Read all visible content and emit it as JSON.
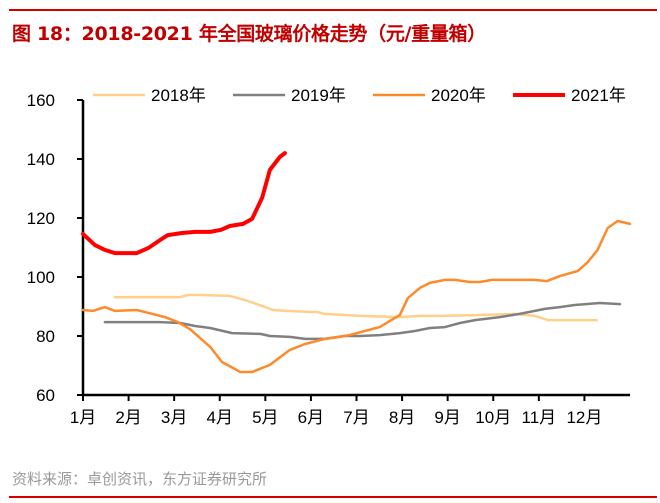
{
  "title": "图 18：2018-2021 年全国玻璃价格走势（元/重量箱）",
  "source": "资料来源：卓创资讯，东方证券研究所",
  "colors": {
    "accent": "#d40000",
    "2018": "#ffd08a",
    "2019": "#808080",
    "2020": "#ff8a2a",
    "2021": "#ff0000"
  },
  "chart_data": {
    "type": "line",
    "title": "图 18：2018-2021 年全国玻璃价格走势（元/重量箱）",
    "xlabel": "",
    "ylabel": "",
    "x_tick_labels": [
      "1月",
      "2月",
      "3月",
      "4月",
      "5月",
      "6月",
      "7月",
      "8月",
      "9月",
      "10月",
      "11月",
      "12月"
    ],
    "x_unit": "month (1 = 1月)",
    "xlim": [
      1,
      13
    ],
    "ylim": [
      60,
      160
    ],
    "y_ticks": [
      60,
      80,
      100,
      120,
      140,
      160
    ],
    "grid": false,
    "legend": "top",
    "series": [
      {
        "name": "2018年",
        "color": "#ffd08a",
        "x": [
          1.7,
          3.13,
          3.31,
          3.57,
          4.22,
          4.55,
          4.93,
          5.17,
          5.43,
          6.15,
          6.3,
          7.07,
          7.95,
          8.39,
          8.83,
          9.6,
          10.47,
          10.91,
          11.2,
          11.46,
          12.27
        ],
        "y": [
          93.2,
          93.2,
          93.9,
          93.9,
          93.6,
          92.2,
          90.2,
          88.8,
          88.5,
          88.1,
          87.5,
          86.8,
          86.4,
          86.8,
          86.8,
          87.1,
          87.5,
          86.8,
          85.4,
          85.4,
          85.4
        ]
      },
      {
        "name": "2019年",
        "color": "#808080",
        "x": [
          1.48,
          2.69,
          3.13,
          3.46,
          3.79,
          4.27,
          4.89,
          5.1,
          5.54,
          5.87,
          6.3,
          6.74,
          7.07,
          7.51,
          7.95,
          8.28,
          8.61,
          8.94,
          9.27,
          9.6,
          10.14,
          10.58,
          11.13,
          11.46,
          11.79,
          12.34,
          12.78
        ],
        "y": [
          84.7,
          84.7,
          84.4,
          83.4,
          82.7,
          81.0,
          80.7,
          80.0,
          79.7,
          79.0,
          79.0,
          80.0,
          80.0,
          80.3,
          81.0,
          81.7,
          82.7,
          83.0,
          84.4,
          85.4,
          86.4,
          87.5,
          89.2,
          89.8,
          90.5,
          91.2,
          90.8
        ]
      },
      {
        "name": "2020年",
        "color": "#ff8a2a",
        "x": [
          1.0,
          1.22,
          1.48,
          1.7,
          2.18,
          2.36,
          2.8,
          3.08,
          3.35,
          3.79,
          4.05,
          4.45,
          4.71,
          5.1,
          5.54,
          5.87,
          6.3,
          6.63,
          6.85,
          7.18,
          7.51,
          7.69,
          7.95,
          8.13,
          8.39,
          8.61,
          8.94,
          9.16,
          9.49,
          9.71,
          9.97,
          10.36,
          10.91,
          11.18,
          11.46,
          11.85,
          12.07,
          12.29,
          12.51,
          12.73,
          13.0
        ],
        "y": [
          88.8,
          88.5,
          89.8,
          88.5,
          88.8,
          88.1,
          86.4,
          84.7,
          82.3,
          76.3,
          71.2,
          67.8,
          67.8,
          70.2,
          75.3,
          77.3,
          79.0,
          79.7,
          80.3,
          81.7,
          83.0,
          84.7,
          87.1,
          92.9,
          96.3,
          98.0,
          99.0,
          99.0,
          98.3,
          98.3,
          99.0,
          99.0,
          99.0,
          98.6,
          100.3,
          102.0,
          105.0,
          109.2,
          116.6,
          119.0,
          118.0
        ]
      },
      {
        "name": "2021年",
        "color": "#ff0000",
        "x": [
          1.0,
          1.26,
          1.48,
          1.7,
          2.18,
          2.43,
          2.69,
          2.86,
          3.17,
          3.46,
          3.79,
          4.03,
          4.22,
          4.51,
          4.71,
          4.93,
          5.1,
          5.32,
          5.43
        ],
        "y": [
          114.6,
          110.8,
          109.2,
          108.1,
          108.1,
          109.8,
          112.5,
          114.2,
          114.9,
          115.3,
          115.3,
          116.0,
          117.3,
          118.0,
          119.7,
          126.8,
          136.3,
          140.7,
          142.0
        ]
      }
    ]
  }
}
